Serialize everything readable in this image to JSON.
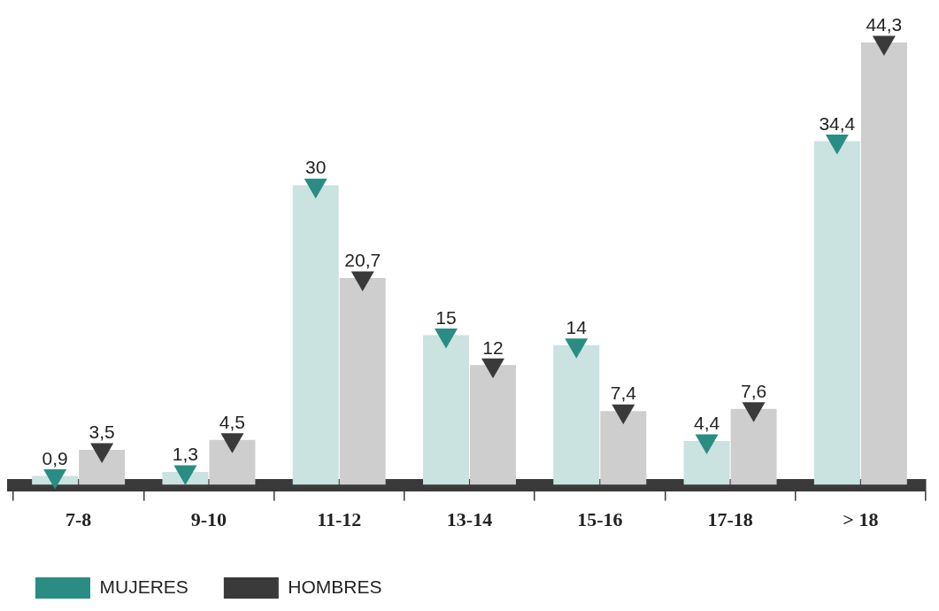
{
  "chart_data": {
    "type": "bar",
    "categories": [
      "7-8",
      "9-10",
      "11-12",
      "13-14",
      "15-16",
      "17-18",
      "> 18"
    ],
    "series": [
      {
        "color": "#cae2e0",
        "values": [
          0.9,
          1.3,
          30,
          15,
          14,
          4.4,
          34.4
        ],
        "value_labels": [
          "0,9",
          "1,3",
          "30",
          "15",
          "14",
          "4,4",
          "34,4"
        ]
      },
      {
        "color": "#cecece",
        "values": [
          3.5,
          4.5,
          20.7,
          12,
          7.4,
          7.6,
          44.3
        ],
        "value_labels": [
          "3,5",
          "4,5",
          "20,7",
          "12",
          "7,4",
          "7,6",
          "44,3"
        ]
      },
      {
        "name": "MUJERES",
        "type": "scatter",
        "marker": "triangle",
        "color": "#2a8c82",
        "x": [
          "7-8",
          "9-10",
          "11-12",
          "13-14",
          "15-16",
          "17-18",
          "> 18"
        ],
        "values": [
          0.9,
          1.3,
          30,
          15,
          14,
          4.4,
          34.4
        ]
      },
      {
        "name": "HOMBRES",
        "type": "scatter",
        "marker": "triangle",
        "color": "#3a3a3a",
        "x": [
          "7-8",
          "9-10",
          "11-12",
          "13-14",
          "15-16",
          "17-18",
          "> 18"
        ],
        "values": [
          3.5,
          4.5,
          20.7,
          12,
          7.4,
          7.6,
          44.3
        ]
      }
    ],
    "legend": "bottom left",
    "grid": false
  }
}
